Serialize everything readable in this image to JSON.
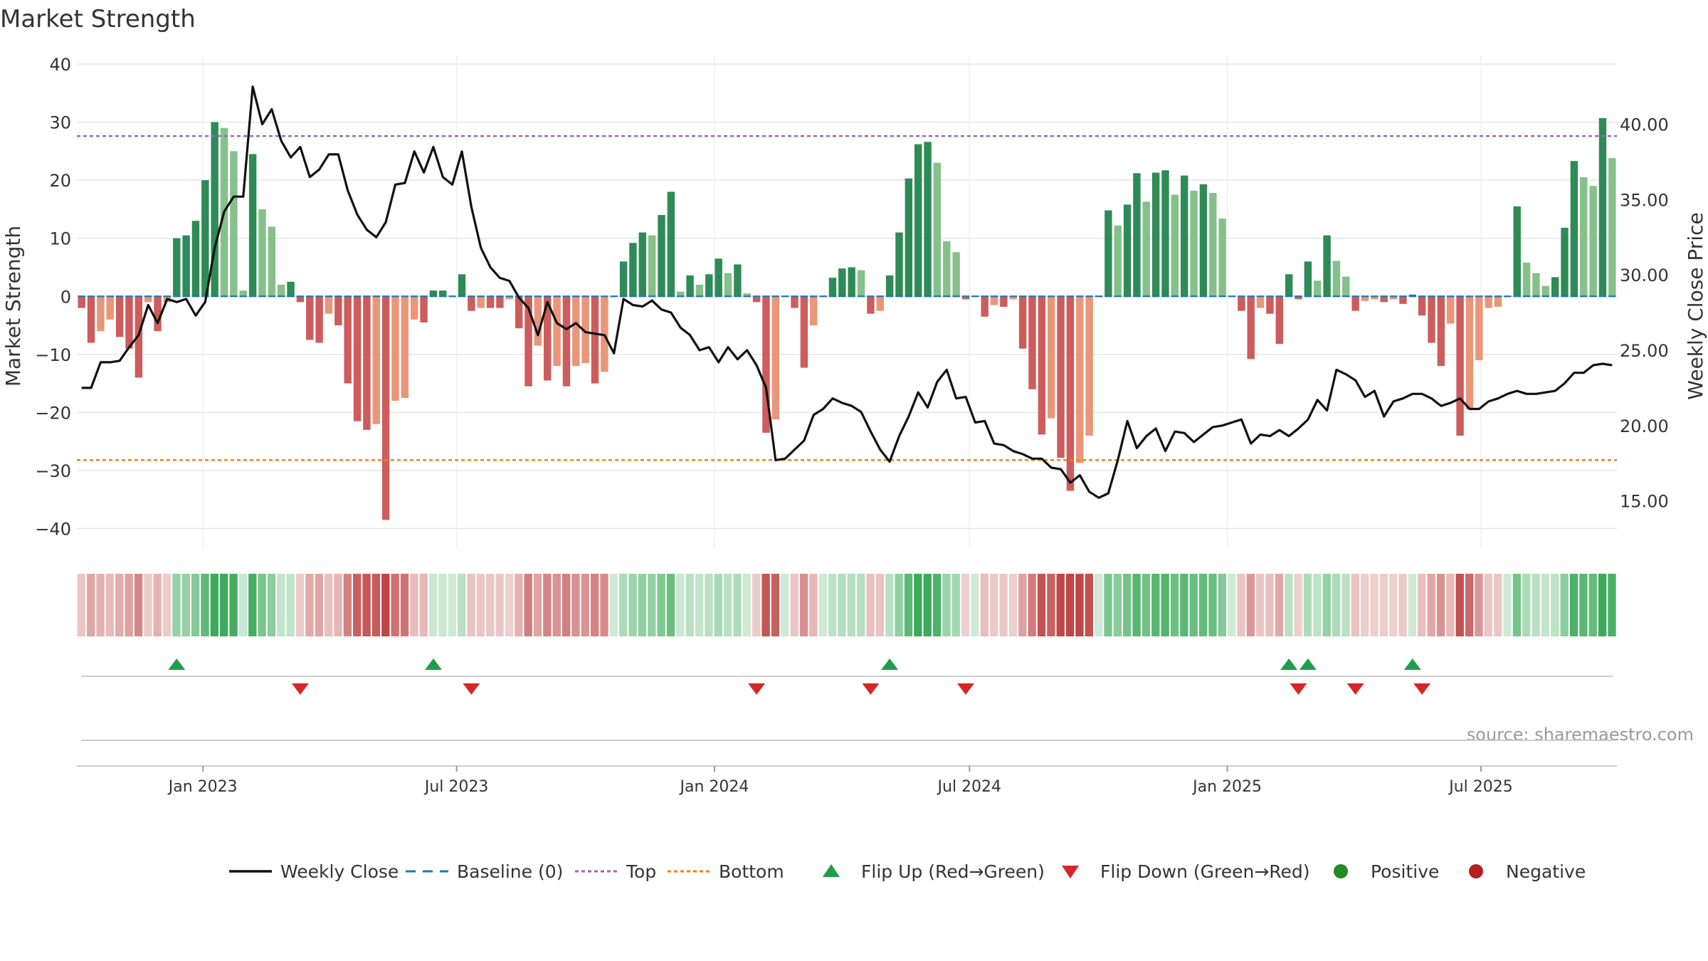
{
  "chart_data": {
    "type": "bar",
    "title": "Market Strength",
    "ylabel_left": "Market Strength",
    "ylabel_right": "Weekly Close Price",
    "source": "source: sharemaestro.com",
    "ylim_left": [
      -43,
      40
    ],
    "ylim_right": [
      12.0,
      44.0
    ],
    "yticks_left": [
      "40",
      "30",
      "20",
      "10",
      "0",
      "−10",
      "−20",
      "−30",
      "−40"
    ],
    "yticks_left_values": [
      40,
      30,
      20,
      10,
      0,
      -10,
      -20,
      -30,
      -40
    ],
    "yticks_right": [
      "40.00",
      "35.00",
      "30.00",
      "25.00",
      "20.00",
      "15.00"
    ],
    "yticks_right_values": [
      40,
      35,
      30,
      25,
      20,
      15
    ],
    "x_start": "2022-10-03",
    "x_end": "2025-10-06",
    "x_ticks": [
      {
        "label": "Jan 2023",
        "date": "2023-01-01"
      },
      {
        "label": "Jul 2023",
        "date": "2023-07-01"
      },
      {
        "label": "Jan 2024",
        "date": "2024-01-01"
      },
      {
        "label": "Jul 2024",
        "date": "2024-07-01"
      },
      {
        "label": "Jan 2025",
        "date": "2025-01-01"
      },
      {
        "label": "Jul 2025",
        "date": "2025-07-01"
      }
    ],
    "top_threshold": 27.6,
    "bottom_threshold": -28.2,
    "strength": [
      -2,
      -8,
      -6,
      -4,
      -7,
      -9,
      -14,
      -1,
      -6,
      -1,
      10,
      10.5,
      13,
      20,
      30,
      29,
      25,
      1,
      24.5,
      15,
      12,
      2,
      2.5,
      -1,
      -7.5,
      -8,
      -3,
      -5,
      -15,
      -21.5,
      -23,
      -22,
      -38.5,
      -18,
      -17.5,
      -4,
      -4.5,
      1,
      1,
      0,
      3.8,
      -2.5,
      -2,
      -2,
      -2,
      -0.5,
      -5.5,
      -15.5,
      -8.5,
      -14.5,
      -12,
      -15.5,
      -12,
      -11.5,
      -15,
      -13,
      0,
      6,
      9.2,
      11,
      10.5,
      14,
      18,
      0.8,
      3.6,
      2,
      3.8,
      6.5,
      4,
      5.5,
      0.5,
      -1,
      -23.5,
      -21.2,
      0,
      -2,
      -12.3,
      -5,
      0,
      3.2,
      4.8,
      5,
      4.5,
      -3,
      -2.5,
      3.6,
      11,
      20.3,
      26.2,
      26.6,
      23,
      9.5,
      7.6,
      -0.5,
      0,
      -3.5,
      -1.5,
      -1.8,
      -0.5,
      -9,
      -16,
      -23.8,
      -21,
      -27.8,
      -33.5,
      -28.7,
      -24,
      0,
      14.8,
      12.2,
      15.8,
      21.2,
      16.3,
      21.3,
      21.7,
      17.5,
      20.8,
      18.2,
      19.3,
      17.8,
      13.4,
      0,
      -2.5,
      -10.8,
      -2,
      -3,
      -8.2,
      3.8,
      -0.5,
      6,
      2.7,
      10.5,
      6.1,
      3.4,
      -2.5,
      -0.8,
      -0.5,
      -1,
      -0.5,
      -1.3,
      0.3,
      -3.3,
      -8,
      -12,
      -4.7,
      -24,
      -19.5,
      -11,
      -2,
      -1.8,
      0,
      15.5,
      5.8,
      4,
      1.8,
      3.3,
      11.8,
      23.3,
      20.5,
      19,
      30.7,
      23.8
    ],
    "close": [
      22.5,
      22.5,
      24.2,
      24.2,
      24.3,
      25.2,
      26.0,
      28.0,
      26.8,
      28.4,
      28.2,
      28.4,
      27.3,
      28.2,
      31.8,
      34.2,
      35.2,
      35.2,
      42.5,
      40.0,
      41.0,
      38.9,
      37.8,
      38.5,
      36.5,
      37.0,
      38.0,
      38.0,
      35.6,
      34.0,
      33.0,
      32.5,
      33.5,
      36.0,
      36.1,
      38.2,
      36.8,
      38.5,
      36.5,
      36.0,
      38.2,
      34.5,
      31.8,
      30.5,
      29.8,
      29.6,
      28.5,
      27.8,
      26.0,
      28.2,
      26.8,
      26.4,
      26.8,
      26.2,
      26.1,
      26.0,
      24.8,
      28.4,
      28.0,
      27.9,
      28.3,
      27.7,
      27.5,
      26.5,
      26.0,
      25.0,
      25.2,
      24.2,
      25.2,
      24.4,
      25.0,
      24.0,
      22.5,
      17.7,
      17.8,
      18.4,
      19.0,
      20.7,
      21.1,
      21.8,
      21.5,
      21.3,
      20.9,
      19.6,
      18.4,
      17.6,
      19.3,
      20.6,
      22.2,
      21.2,
      22.9,
      23.7,
      21.8,
      21.9,
      20.2,
      20.3,
      18.8,
      18.7,
      18.3,
      18.1,
      17.8,
      17.8,
      17.2,
      17.1,
      16.2,
      16.7,
      15.6,
      15.2,
      15.5,
      17.7,
      20.3,
      18.5,
      19.3,
      19.8,
      18.3,
      19.6,
      19.5,
      18.9,
      19.4,
      19.9,
      20.0,
      20.2,
      20.4,
      18.8,
      19.4,
      19.3,
      19.7,
      19.3,
      19.8,
      20.4,
      21.7,
      21.0,
      23.7,
      23.4,
      23.0,
      21.9,
      22.3,
      20.6,
      21.6,
      21.8,
      22.1,
      22.1,
      21.8,
      21.3,
      21.5,
      21.8,
      21.1,
      21.1,
      21.6,
      21.8,
      22.1,
      22.3,
      22.1,
      22.1,
      22.2,
      22.3,
      22.8,
      23.5,
      23.5,
      24.0,
      24.1,
      24.0
    ]
  },
  "legend": [
    {
      "key": "close",
      "label": "Weekly Close"
    },
    {
      "key": "baseline",
      "label": "Baseline (0)"
    },
    {
      "key": "top",
      "label": "Top"
    },
    {
      "key": "bottom",
      "label": "Bottom"
    },
    {
      "key": "flip_up",
      "label": "Flip Up (Red→Green)"
    },
    {
      "key": "flip_down",
      "label": "Flip Down (Green→Red)"
    },
    {
      "key": "positive",
      "label": "Positive"
    },
    {
      "key": "negative",
      "label": "Negative"
    }
  ],
  "colors": {
    "pos_strong": "#2e8b57",
    "pos_light": "#86c08a",
    "neg_strong": "#cd5c5c",
    "neg_light": "#e9967a",
    "close_line": "#111111",
    "baseline": "#1f77b4",
    "top": "#9467bd",
    "bottom": "#ff7f0e",
    "flip_up": "#1f9e4a",
    "flip_down": "#d62728",
    "positive_dot": "#228b22",
    "negative_dot": "#b22222",
    "grid": "#e6e6e6"
  }
}
